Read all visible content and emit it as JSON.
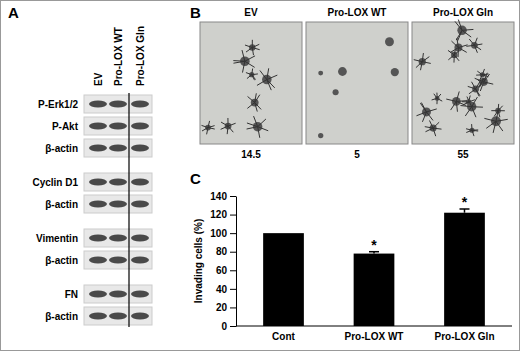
{
  "chart_data": {
    "type": "bar",
    "panel_label": "C",
    "categories": [
      "Cont",
      "Pro-LOX WT",
      "Pro-LOX Gln"
    ],
    "values": [
      100,
      78,
      122
    ],
    "errors": [
      null,
      2,
      4
    ],
    "significance": [
      null,
      "*",
      "*"
    ],
    "color": "#000000",
    "ylabel": "Invading cells (%)",
    "ylim": [
      0,
      140
    ],
    "yticks": [
      0,
      20,
      40,
      60,
      80,
      100,
      120,
      140
    ]
  },
  "figure": {
    "panel_a": {
      "label": "A",
      "lanes": [
        "EV",
        "Pro-LOX WT",
        "Pro-LOX Gln"
      ],
      "groups": [
        [
          "P-Erk1/2",
          "P-Akt",
          "β-actin"
        ],
        [
          "Cyclin D1",
          "β-actin"
        ],
        [
          "Vimentin",
          "β-actin"
        ],
        [
          "FN",
          "β-actin"
        ]
      ]
    },
    "panel_b": {
      "label": "B",
      "conditions": [
        "EV",
        "Pro-LOX WT",
        "Pro-LOX Gln"
      ],
      "colony_counts": [
        14.5,
        5,
        55
      ]
    }
  }
}
